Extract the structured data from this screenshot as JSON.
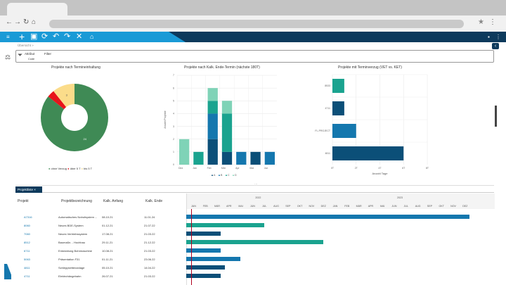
{
  "browser": {
    "nav_icons": [
      "back-icon",
      "forward-icon",
      "reload-icon",
      "home-icon"
    ],
    "right_icons": [
      "star-icon",
      "menu-icon"
    ]
  },
  "toolbar": {
    "icons": [
      "menu-icon",
      "plus-icon",
      "save-icon",
      "refresh-icon",
      "undo-icon",
      "redo-icon",
      "close-icon",
      "home-icon"
    ]
  },
  "breadcrumb": "Übersicht »",
  "filter": {
    "attribute_label": "Attribut",
    "attribute_value": "Code",
    "filter_label": "Filter"
  },
  "colors": {
    "accent": "#1a9ad6",
    "navy": "#0d3a5c",
    "green": "#3f8a55",
    "red": "#e8141b",
    "yellow": "#fbdc8a",
    "A": "#0b4f78",
    "B": "#1477ae",
    "C": "#1aa38f",
    "D": "#7fd3b7"
  },
  "chart_data": [
    {
      "type": "pie",
      "title": "Projekte nach Termineinhaltung",
      "labels": [
        "ohne Verzug",
        "über 5 T",
        "bis 5 T"
      ],
      "values": [
        24,
        1,
        3
      ],
      "colors": [
        "#3f8a55",
        "#e8141b",
        "#fbdc8a"
      ],
      "legend": "bottom",
      "donut": true
    },
    {
      "type": "bar",
      "stacked": true,
      "title": "Projekte nach Kalk. Ende-Termin (nächste 180T)",
      "ylabel": "Anzahl Projekte",
      "xlabel": "",
      "categories": [
        "Dez",
        "Jan",
        "Feb",
        "Mär",
        "Apr",
        "Mai",
        "Jun"
      ],
      "ylim": [
        0,
        7
      ],
      "yticks": [
        "0",
        "1",
        "2",
        "3",
        "4",
        "5",
        "6",
        "7"
      ],
      "series": [
        {
          "name": "A",
          "values": [
            0,
            0,
            2,
            1,
            0,
            1,
            0
          ]
        },
        {
          "name": "B",
          "values": [
            0,
            0,
            2,
            0,
            1,
            0,
            1
          ]
        },
        {
          "name": "C",
          "values": [
            0,
            1,
            1,
            3,
            0,
            0,
            0
          ]
        },
        {
          "name": "D",
          "values": [
            2,
            0,
            1,
            1,
            0,
            0,
            0
          ]
        }
      ],
      "legend": "bottom",
      "grid": true
    },
    {
      "type": "bar",
      "orientation": "horizontal",
      "title": "Projekte mit Terminverzug (VET vs. KET)",
      "xlabel": "Anzahl Tage",
      "categories": [
        "8533",
        "4711",
        "FL-PROJECT",
        "4811"
      ],
      "values": [
        1,
        1,
        2,
        6
      ],
      "colors": [
        "#1aa38f",
        "#0b4f78",
        "#1477ae",
        "#0b4f78"
      ],
      "xlim": [
        0,
        8
      ],
      "xticks": [
        "0T",
        "2T",
        "4T",
        "6T",
        "8T"
      ],
      "grid": true
    }
  ],
  "list": {
    "tab_label": "Projektliste ×",
    "columns": [
      "Projekt",
      "Projektbezeichnung",
      "Kalk. Anfang",
      "Kalk. Ende"
    ],
    "rows": [
      [
        "A7316",
        "Automatisches Notrufsystem ...",
        "08.10.21",
        "11.01.24"
      ],
      [
        "8060",
        "Neues BDE-System",
        "01.12.21",
        "21.07.22"
      ],
      [
        "7060",
        "Neues Vertriebssystem",
        "17.08.21",
        "21.03.22"
      ],
      [
        "8512",
        "Baumaßn. - Hochbau",
        "29.11.21",
        "21.12.22"
      ],
      [
        "6711",
        "Entwicklung Bohrmaschine",
        "10.08.21",
        "21.03.22"
      ],
      [
        "5063",
        "Präsentation F31",
        "01.11.21",
        "23.06.22"
      ],
      [
        "4811",
        "Schleppkettenanlage",
        "05.10.21",
        "14.04.22"
      ],
      [
        "4711",
        "Elektrohängebahn",
        "26.07.21",
        "21.03.22"
      ]
    ]
  },
  "gantt": {
    "years": [
      "2022",
      "2023"
    ],
    "months": [
      "JAN",
      "FEB",
      "MÄR",
      "APR",
      "MAI",
      "JUN",
      "JUL",
      "AUG",
      "SEP",
      "OKT",
      "NOV",
      "DEZ",
      "JAN",
      "FEB",
      "MÄR",
      "APR",
      "MAI",
      "JUN",
      "JUL",
      "AUG",
      "SEP",
      "OKT",
      "NOV",
      "DEZ"
    ],
    "bars": [
      {
        "end_months": 24.1,
        "color": "#1477ae"
      },
      {
        "end_months": 6.7,
        "color": "#1aa38f"
      },
      {
        "end_months": 3,
        "color": "#0b4f78"
      },
      {
        "end_months": 11.7,
        "color": "#1aa38f"
      },
      {
        "end_months": 3,
        "color": "#1477ae"
      },
      {
        "end_months": 4.7,
        "color": "#1477ae"
      },
      {
        "end_months": 3.4,
        "color": "#0b4f78"
      },
      {
        "end_months": 3,
        "color": "#0b4f78"
      }
    ]
  }
}
